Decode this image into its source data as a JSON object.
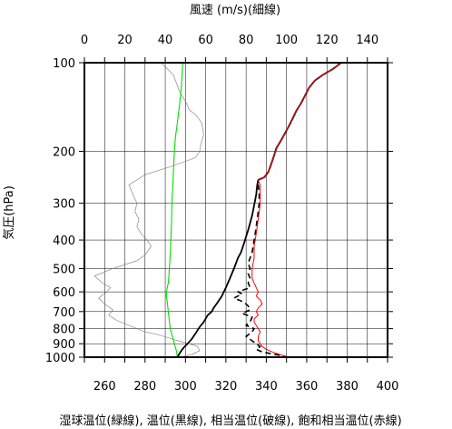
{
  "chart_data": {
    "type": "line",
    "title": "",
    "top_axis": {
      "label": "風速 (m/s)(細線)",
      "range": [
        0,
        150
      ],
      "ticks": [
        0,
        20,
        40,
        60,
        80,
        100,
        120,
        140
      ]
    },
    "bottom_axis": {
      "label": "湿球温位(緑線), 温位(黒線), 相当温位(破線), 飽和相当温位(赤線)",
      "range": [
        250,
        400
      ],
      "ticks": [
        260,
        280,
        300,
        320,
        340,
        360,
        380,
        400
      ]
    },
    "y_axis": {
      "label": "気圧(hPa)",
      "scale": "log",
      "reversed": true,
      "range": [
        1000,
        100
      ],
      "ticks": [
        100,
        200,
        300,
        400,
        500,
        600,
        700,
        800,
        900,
        1000
      ]
    },
    "grid": true,
    "series": [
      {
        "name": "風速",
        "axis": "top",
        "color": "#777777",
        "width": 0.6,
        "dash": "",
        "points": [
          [
            47,
            1000
          ],
          [
            53,
            980
          ],
          [
            57,
            950
          ],
          [
            56,
            920
          ],
          [
            52,
            900
          ],
          [
            44,
            870
          ],
          [
            37,
            840
          ],
          [
            30,
            820
          ],
          [
            22,
            780
          ],
          [
            16,
            750
          ],
          [
            12,
            720
          ],
          [
            14,
            690
          ],
          [
            10,
            660
          ],
          [
            7,
            630
          ],
          [
            11,
            600
          ],
          [
            13,
            580
          ],
          [
            9,
            560
          ],
          [
            5,
            530
          ],
          [
            14,
            500
          ],
          [
            26,
            470
          ],
          [
            30,
            450
          ],
          [
            33,
            420
          ],
          [
            31,
            400
          ],
          [
            28,
            380
          ],
          [
            26,
            360
          ],
          [
            27,
            340
          ],
          [
            25,
            320
          ],
          [
            26,
            300
          ],
          [
            24,
            280
          ],
          [
            22,
            260
          ],
          [
            30,
            240
          ],
          [
            43,
            225
          ],
          [
            55,
            210
          ],
          [
            57,
            200
          ],
          [
            58,
            185
          ],
          [
            59,
            175
          ],
          [
            58,
            160
          ],
          [
            55,
            150
          ],
          [
            52,
            145
          ],
          [
            50,
            135
          ],
          [
            47,
            125
          ],
          [
            44,
            110
          ],
          [
            38,
            100
          ]
        ]
      },
      {
        "name": "湿球温位",
        "axis": "bottom",
        "color": "#00e000",
        "width": 1.1,
        "dash": "",
        "points": [
          [
            296,
            1000
          ],
          [
            295.5,
            950
          ],
          [
            294.5,
            900
          ],
          [
            293.5,
            850
          ],
          [
            292.5,
            800
          ],
          [
            292,
            750
          ],
          [
            291.5,
            700
          ],
          [
            291,
            650
          ],
          [
            290.5,
            620
          ],
          [
            290.8,
            590
          ],
          [
            291.5,
            560
          ],
          [
            291.8,
            530
          ],
          [
            292,
            500
          ],
          [
            292.3,
            470
          ],
          [
            292.5,
            440
          ],
          [
            292.7,
            410
          ],
          [
            292.9,
            380
          ],
          [
            293.1,
            350
          ],
          [
            293.2,
            320
          ],
          [
            293.4,
            290
          ],
          [
            293.8,
            260
          ],
          [
            294.1,
            230
          ],
          [
            294.5,
            200
          ],
          [
            295,
            180
          ],
          [
            296,
            160
          ],
          [
            297,
            140
          ],
          [
            298,
            120
          ],
          [
            298.7,
            100
          ]
        ]
      },
      {
        "name": "温位",
        "axis": "bottom",
        "color": "#000000",
        "width": 1.8,
        "dash": "",
        "points": [
          [
            296,
            1000
          ],
          [
            297.5,
            960
          ],
          [
            299,
            930
          ],
          [
            301,
            900
          ],
          [
            303,
            870
          ],
          [
            304,
            850
          ],
          [
            305.5,
            820
          ],
          [
            307,
            790
          ],
          [
            309,
            760
          ],
          [
            311,
            720
          ],
          [
            313,
            700
          ],
          [
            314,
            680
          ],
          [
            316,
            650
          ],
          [
            318,
            620
          ],
          [
            319,
            600
          ],
          [
            320,
            580
          ],
          [
            321,
            560
          ],
          [
            322,
            540
          ],
          [
            323,
            520
          ],
          [
            324,
            500
          ],
          [
            325,
            480
          ],
          [
            326,
            460
          ],
          [
            327.5,
            440
          ],
          [
            329,
            410
          ],
          [
            330,
            390
          ],
          [
            331,
            370
          ],
          [
            332,
            350
          ],
          [
            333,
            330
          ],
          [
            334,
            305
          ],
          [
            335,
            280
          ],
          [
            335.5,
            260
          ],
          [
            336,
            250
          ],
          [
            339,
            245
          ],
          [
            341,
            235
          ],
          [
            342,
            225
          ],
          [
            343,
            215
          ],
          [
            344,
            205
          ],
          [
            345,
            195
          ],
          [
            347,
            185
          ],
          [
            349,
            175
          ],
          [
            351,
            165
          ],
          [
            353,
            155
          ],
          [
            355,
            145
          ],
          [
            357,
            138
          ],
          [
            359,
            130
          ],
          [
            361,
            122
          ],
          [
            364,
            115
          ],
          [
            368,
            110
          ],
          [
            373,
            105
          ],
          [
            377,
            100
          ]
        ]
      },
      {
        "name": "相当温位",
        "axis": "bottom",
        "color": "#000000",
        "width": 1.6,
        "dash": "6,4",
        "points": [
          [
            351,
            1000
          ],
          [
            345,
            980
          ],
          [
            338,
            960
          ],
          [
            335,
            940
          ],
          [
            337,
            920
          ],
          [
            335,
            900
          ],
          [
            333,
            880
          ],
          [
            330,
            850
          ],
          [
            333,
            820
          ],
          [
            334,
            800
          ],
          [
            330,
            780
          ],
          [
            332,
            760
          ],
          [
            333,
            730
          ],
          [
            328,
            710
          ],
          [
            332,
            690
          ],
          [
            331,
            670
          ],
          [
            329,
            650
          ],
          [
            324,
            630
          ],
          [
            328,
            610
          ],
          [
            326,
            600
          ],
          [
            329,
            590
          ],
          [
            332,
            580
          ],
          [
            331,
            560
          ],
          [
            332,
            540
          ],
          [
            331,
            520
          ],
          [
            332,
            500
          ],
          [
            331,
            480
          ],
          [
            332,
            460
          ],
          [
            333,
            440
          ],
          [
            333.5,
            420
          ],
          [
            334,
            400
          ],
          [
            334.5,
            380
          ],
          [
            335,
            360
          ],
          [
            335.5,
            340
          ],
          [
            336,
            320
          ],
          [
            336.5,
            300
          ],
          [
            336.5,
            280
          ],
          [
            336,
            260
          ],
          [
            336,
            250
          ],
          [
            339,
            245
          ],
          [
            341,
            235
          ],
          [
            342,
            225
          ],
          [
            343,
            215
          ],
          [
            344,
            205
          ],
          [
            345,
            195
          ],
          [
            347,
            185
          ],
          [
            349,
            175
          ],
          [
            351,
            165
          ],
          [
            353,
            155
          ],
          [
            355,
            145
          ],
          [
            357,
            138
          ],
          [
            359,
            130
          ],
          [
            361,
            122
          ],
          [
            364,
            115
          ],
          [
            368,
            110
          ],
          [
            373,
            105
          ],
          [
            377,
            100
          ]
        ]
      },
      {
        "name": "飽和相当温位",
        "axis": "bottom",
        "color": "#ff0000",
        "width": 1.0,
        "dash": "",
        "points": [
          [
            351,
            1000
          ],
          [
            347,
            980
          ],
          [
            343,
            960
          ],
          [
            340,
            940
          ],
          [
            338,
            920
          ],
          [
            337,
            900
          ],
          [
            336,
            880
          ],
          [
            336,
            850
          ],
          [
            337,
            820
          ],
          [
            336,
            800
          ],
          [
            335,
            780
          ],
          [
            334,
            760
          ],
          [
            334,
            740
          ],
          [
            336,
            720
          ],
          [
            335,
            700
          ],
          [
            336,
            680
          ],
          [
            338,
            660
          ],
          [
            337,
            640
          ],
          [
            335,
            620
          ],
          [
            336,
            600
          ],
          [
            335,
            580
          ],
          [
            334,
            560
          ],
          [
            333,
            540
          ],
          [
            333,
            520
          ],
          [
            333,
            500
          ],
          [
            333.5,
            480
          ],
          [
            334,
            460
          ],
          [
            334,
            440
          ],
          [
            334,
            420
          ],
          [
            334.5,
            400
          ],
          [
            335,
            380
          ],
          [
            335.5,
            360
          ],
          [
            336,
            340
          ],
          [
            336.5,
            320
          ],
          [
            337,
            300
          ],
          [
            337,
            280
          ],
          [
            337,
            260
          ],
          [
            336,
            250
          ],
          [
            339,
            245
          ],
          [
            341,
            235
          ],
          [
            342,
            225
          ],
          [
            343,
            215
          ],
          [
            344,
            205
          ],
          [
            345,
            195
          ],
          [
            347,
            185
          ],
          [
            349,
            175
          ],
          [
            351,
            165
          ],
          [
            353,
            155
          ],
          [
            355,
            145
          ],
          [
            357,
            138
          ],
          [
            359,
            130
          ],
          [
            361,
            122
          ],
          [
            364,
            115
          ],
          [
            368,
            110
          ],
          [
            373,
            105
          ],
          [
            377,
            100
          ]
        ]
      }
    ]
  }
}
